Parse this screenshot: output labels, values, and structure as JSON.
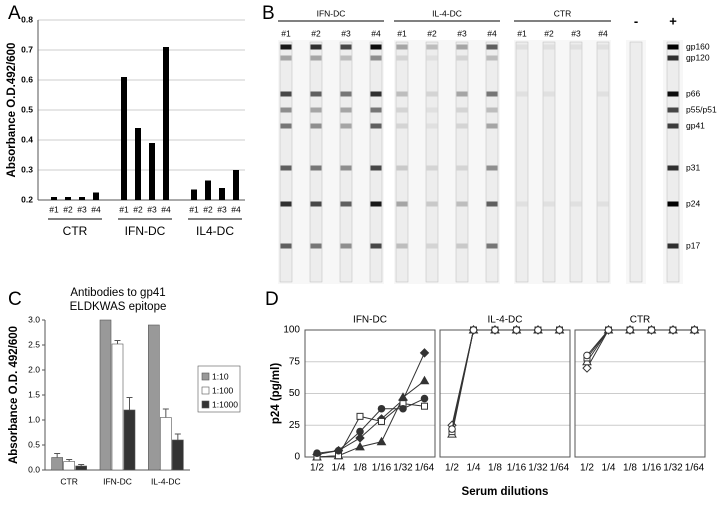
{
  "chart_data": [
    {
      "type": "bar",
      "panel_label": "A",
      "ylabel": "Absorbance O.D.492/600",
      "groups": [
        "CTR",
        "IFN-DC",
        "IL4-DC"
      ],
      "categories": [
        "#1",
        "#2",
        "#3",
        "#4",
        "#1",
        "#2",
        "#3",
        "#4",
        "#1",
        "#2",
        "#3",
        "#4"
      ],
      "values": [
        0.21,
        0.21,
        0.21,
        0.225,
        0.61,
        0.44,
        0.39,
        0.71,
        0.235,
        0.265,
        0.24,
        0.3
      ],
      "color": "#000000",
      "ylim": [
        0.2,
        0.8
      ],
      "yticks": [
        0.2,
        0.3,
        0.4,
        0.5,
        0.6,
        0.7,
        0.8
      ],
      "grid": true
    },
    {
      "type": "grouped-bar",
      "panel_label": "C",
      "title": [
        "Antibodies to gp41",
        "ELDKWAS epitope"
      ],
      "ylabel": "Absorbance O.D. 492/600",
      "categories": [
        "CTR",
        "IFN-DC",
        "IL-4-DC"
      ],
      "series": [
        {
          "name": "1:10",
          "color": "#999999",
          "values": [
            0.25,
            3.0,
            2.9
          ],
          "errors": [
            0.08,
            null,
            null
          ]
        },
        {
          "name": "1:100",
          "color": "#ffffff",
          "values": [
            0.17,
            2.52,
            1.05
          ],
          "errors": [
            0.04,
            0.07,
            0.17
          ]
        },
        {
          "name": "1:1000",
          "color": "#333333",
          "values": [
            0.08,
            1.2,
            0.6
          ],
          "errors": [
            0.03,
            0.25,
            0.12
          ]
        }
      ],
      "ylim": [
        0,
        3
      ],
      "yticks": [
        {
          "value": 0,
          "label": "0.0"
        },
        0.5,
        {
          "value": 1,
          "label": "1.0"
        },
        1.5,
        {
          "value": 2,
          "label": "2.0"
        },
        2.5,
        {
          "value": 3,
          "label": "3.0"
        }
      ],
      "grid": false,
      "legend": "right"
    },
    {
      "type": "line",
      "panel_label": "D",
      "ylabel": "p24 (pg/ml)",
      "xlabel": "Serum dilutions",
      "categories": [
        "1/2",
        "1/4",
        "1/8",
        "1/16",
        "1/32",
        "1/64"
      ],
      "ylim": [
        0,
        100
      ],
      "yticks": [
        0,
        25,
        50,
        75,
        100
      ],
      "grid": true,
      "panels": [
        {
          "title": "IFN-DC",
          "series": [
            {
              "marker": "diamond",
              "filled": true,
              "color": "#333333",
              "values": [
                2,
                5,
                15,
                30,
                45,
                82
              ]
            },
            {
              "marker": "triangle",
              "filled": true,
              "color": "#333333",
              "values": [
                0,
                1,
                8,
                12,
                47,
                60
              ]
            },
            {
              "marker": "square",
              "filled": false,
              "color": "#333333",
              "values": [
                0,
                1,
                32,
                28,
                42,
                40
              ]
            },
            {
              "marker": "circle",
              "filled": true,
              "color": "#333333",
              "values": [
                3,
                5,
                20,
                38,
                38,
                46
              ]
            }
          ]
        },
        {
          "title": "IL-4-DC",
          "series": [
            {
              "marker": "diamond",
              "filled": false,
              "color": "#333333",
              "values": [
                25,
                100,
                100,
                100,
                100,
                100
              ]
            },
            {
              "marker": "triangle",
              "filled": false,
              "color": "#333333",
              "values": [
                18,
                100,
                100,
                100,
                100,
                100
              ]
            },
            {
              "marker": "square",
              "filled": false,
              "color": "#333333",
              "values": [
                20,
                100,
                100,
                100,
                100,
                100
              ]
            },
            {
              "marker": "circle",
              "filled": false,
              "color": "#333333",
              "values": [
                22,
                100,
                100,
                100,
                100,
                100
              ]
            }
          ]
        },
        {
          "title": "CTR",
          "series": [
            {
              "marker": "diamond",
              "filled": false,
              "color": "#333333",
              "values": [
                70,
                100,
                100,
                100,
                100,
                100
              ]
            },
            {
              "marker": "triangle",
              "filled": false,
              "color": "#333333",
              "values": [
                75,
                100,
                100,
                100,
                100,
                100
              ]
            },
            {
              "marker": "square",
              "filled": false,
              "color": "#333333",
              "values": [
                78,
                100,
                100,
                100,
                100,
                100
              ]
            },
            {
              "marker": "circle",
              "filled": false,
              "color": "#333333",
              "values": [
                80,
                100,
                100,
                100,
                100,
                100
              ]
            }
          ]
        }
      ]
    }
  ],
  "blot": {
    "panel_label": "B",
    "groups": [
      {
        "label": "IFN-DC",
        "lanes": [
          "#1",
          "#2",
          "#3",
          "#4"
        ]
      },
      {
        "label": "IL-4-DC",
        "lanes": [
          "#1",
          "#2",
          "#3",
          "#4"
        ]
      },
      {
        "label": "CTR",
        "lanes": [
          "#1",
          "#2",
          "#3",
          "#4"
        ]
      }
    ],
    "controls": [
      "-",
      "+"
    ],
    "bands": [
      "gp160",
      "gp120",
      "p66",
      "p55/p51",
      "gp41",
      "p31",
      "p24",
      "p17"
    ]
  }
}
